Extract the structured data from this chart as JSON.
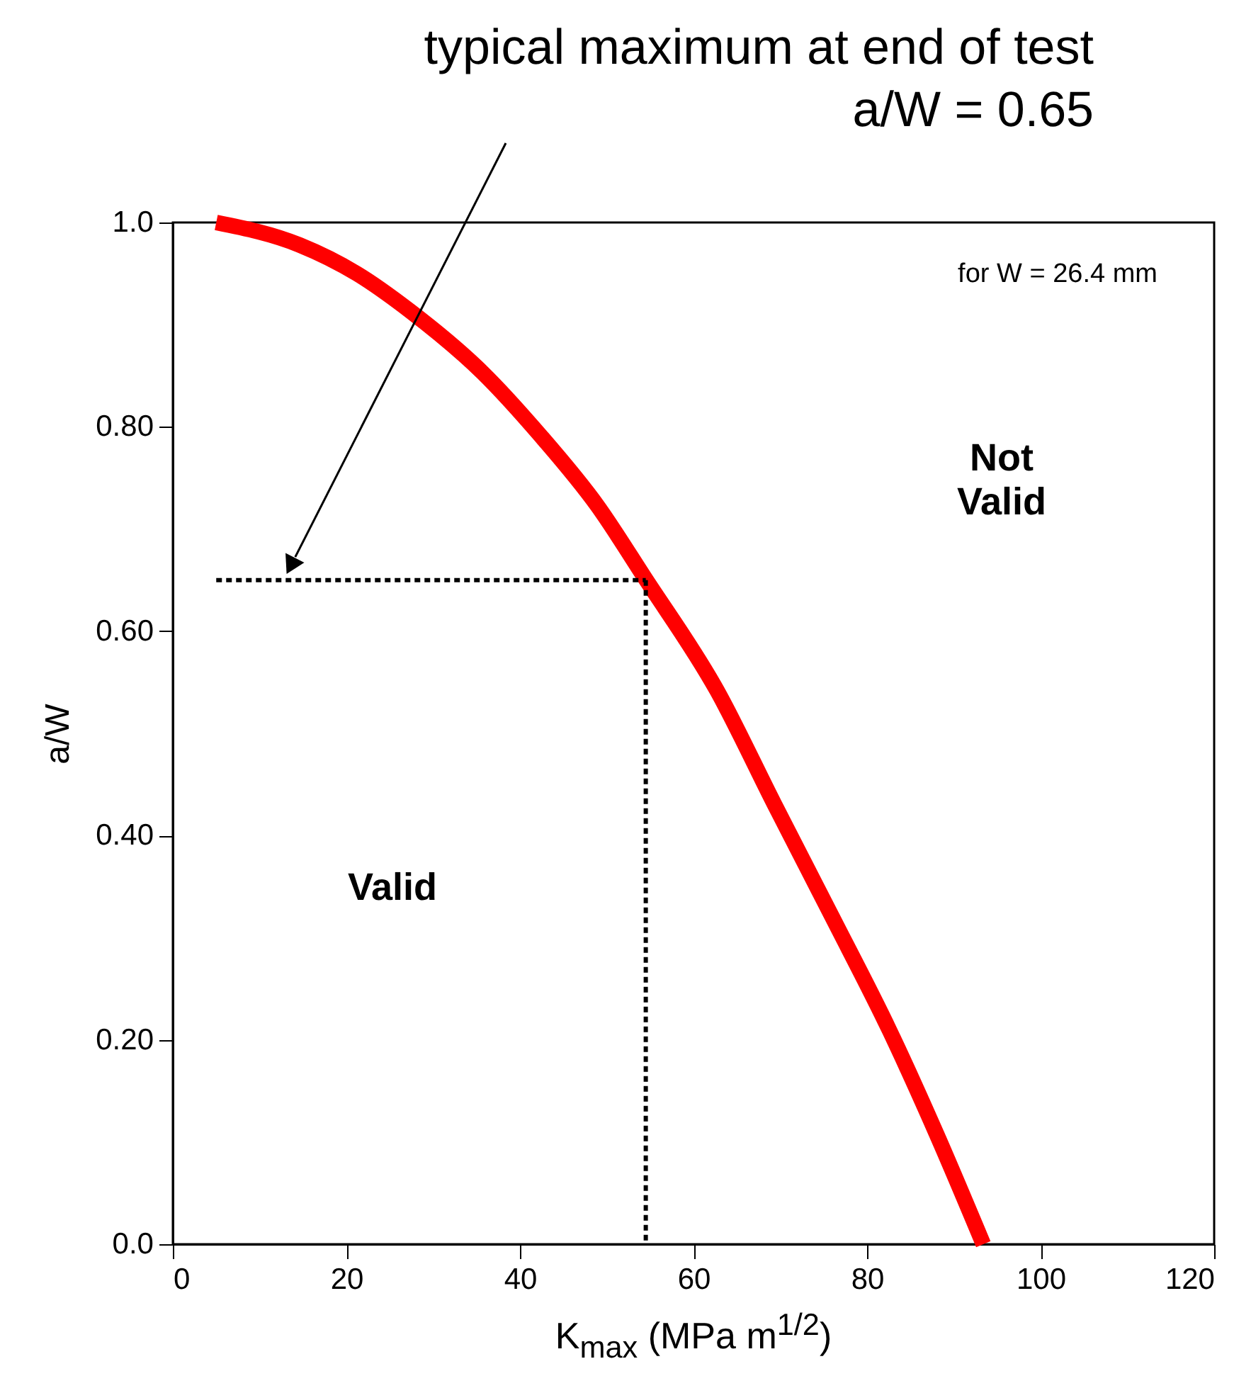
{
  "chart_data": {
    "type": "line",
    "xlabel": "K$_{max}$ (MPa m$^{1/2}$)",
    "ylabel": "a/W",
    "xlim": [
      0,
      120
    ],
    "xticks": [
      0,
      20,
      40,
      60,
      80,
      100,
      120
    ],
    "ylim": [
      0,
      1
    ],
    "yticks": [
      {
        "value": 0,
        "label": "0.0"
      },
      {
        "value": 0.2,
        "label": "0.20"
      },
      {
        "value": 0.4,
        "label": "0.40"
      },
      {
        "value": 0.6,
        "label": "0.60"
      },
      {
        "value": 0.8,
        "label": "0.80"
      },
      {
        "value": 1,
        "label": "1.0"
      }
    ],
    "series": [
      {
        "color": "#ff0000",
        "x": [
          5,
          14.6,
          21.2,
          27.4,
          35.7,
          42.3,
          48.9,
          54.4,
          62.7,
          69.3,
          76,
          82.6,
          88,
          93.4
        ],
        "values": [
          1.0,
          0.978,
          0.95,
          0.913,
          0.853,
          0.792,
          0.723,
          0.652,
          0.542,
          0.431,
          0.32,
          0.209,
          0.108,
          0
        ]
      },
      {
        "color": "#000000",
        "line_style": "dotted",
        "x": [
          5,
          54.5
        ],
        "values": [
          0.65,
          0.65
        ]
      },
      {
        "color": "#000000",
        "line_style": "dotted",
        "x": [
          54.5,
          54.5
        ],
        "values": [
          0.65,
          0
        ]
      }
    ],
    "annotations": [
      "typical maximum at end of test\na/W = 0.65",
      "for W = 26.4 mm",
      "Not\nValid",
      "Valid"
    ]
  }
}
